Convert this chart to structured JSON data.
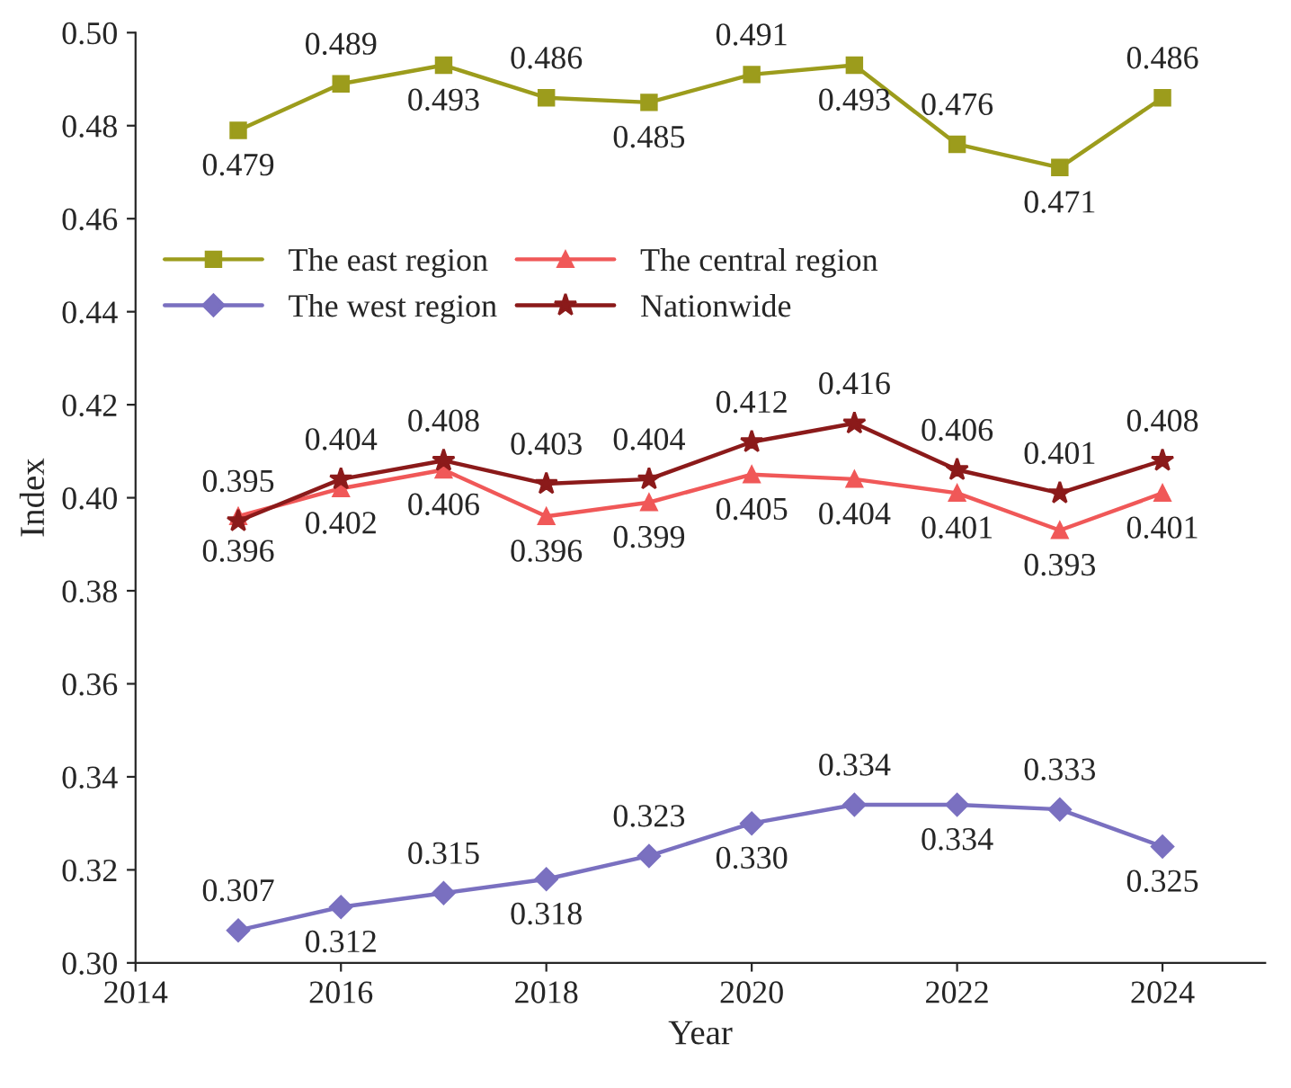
{
  "chart_data": {
    "type": "line",
    "xlabel": "Year",
    "ylabel": "Index",
    "x": [
      2015,
      2016,
      2017,
      2018,
      2019,
      2020,
      2021,
      2022,
      2023,
      2024
    ],
    "series": [
      {
        "name": "The east region",
        "color": "#9c9c1c",
        "marker": "square",
        "values": [
          0.479,
          0.489,
          0.493,
          0.486,
          0.485,
          0.491,
          0.493,
          0.476,
          0.471,
          0.486
        ]
      },
      {
        "name": "The central region",
        "color": "#f05858",
        "marker": "triangle",
        "values": [
          0.396,
          0.402,
          0.406,
          0.396,
          0.399,
          0.405,
          0.404,
          0.401,
          0.393,
          0.401
        ]
      },
      {
        "name": "The west region",
        "color": "#7a70c0",
        "marker": "diamond",
        "values": [
          0.307,
          0.312,
          0.315,
          0.318,
          0.323,
          0.33,
          0.334,
          0.334,
          0.333,
          0.325
        ],
        "value_labels": [
          "0.307",
          "0.312",
          "0.315",
          "0.318",
          "0.323",
          "0.330",
          "0.334",
          "0.334",
          "0.333",
          "0.325"
        ]
      },
      {
        "name": "Nationwide",
        "color": "#8b1a1a",
        "marker": "star",
        "values": [
          0.395,
          0.404,
          0.408,
          0.403,
          0.404,
          0.412,
          0.416,
          0.406,
          0.401,
          0.408
        ]
      }
    ],
    "xlim": [
      2014,
      2025
    ],
    "xticks": [
      2014,
      2016,
      2018,
      2020,
      2022,
      2024
    ],
    "ylim": [
      0.3,
      0.5
    ],
    "yticks": [
      {
        "value": 0.3,
        "label": "0.30"
      },
      {
        "value": 0.32,
        "label": "0.32"
      },
      {
        "value": 0.34,
        "label": "0.34"
      },
      {
        "value": 0.36,
        "label": "0.36"
      },
      {
        "value": 0.38,
        "label": "0.38"
      },
      {
        "value": 0.4,
        "label": "0.40"
      },
      {
        "value": 0.42,
        "label": "0.42"
      },
      {
        "value": 0.44,
        "label": "0.44"
      },
      {
        "value": 0.46,
        "label": "0.46"
      },
      {
        "value": 0.48,
        "label": "0.48"
      },
      {
        "value": 0.5,
        "label": "0.50"
      }
    ],
    "data_labels": true,
    "legend": "top left",
    "grid": false,
    "line_style": "solid"
  }
}
